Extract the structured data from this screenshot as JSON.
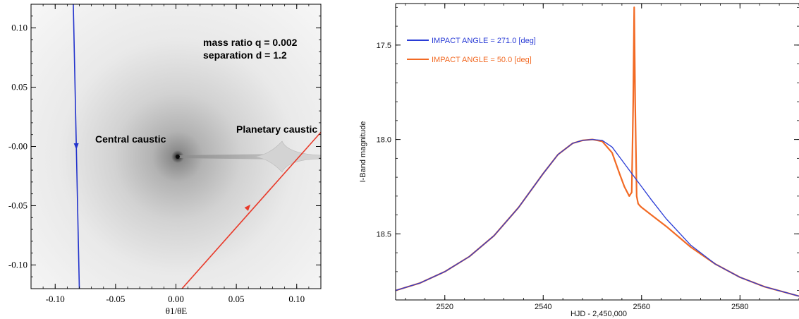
{
  "chart_data": [
    {
      "type": "map",
      "xlabel": "θ1/θE",
      "xlim": [
        -0.12,
        0.12
      ],
      "ylim": [
        -0.12,
        0.12
      ],
      "x_ticks": [
        "-0.10",
        "-0.05",
        "0.00",
        "0.05",
        "0.10"
      ],
      "x_tick_values": [
        -0.1,
        -0.05,
        0.0,
        0.05,
        0.1
      ],
      "y_ticks": [
        "0.10",
        "0.05",
        "-0.00",
        "-0.05",
        "-0.10"
      ],
      "y_tick_values": [
        0.1,
        0.05,
        0.0,
        -0.05,
        -0.1
      ],
      "annotations": [
        {
          "text": "mass ratio q = 0.002"
        },
        {
          "text": "separation d = 1.2"
        },
        {
          "text": "Central caustic"
        },
        {
          "text": "Planetary caustic"
        }
      ],
      "trajectories": [
        {
          "color": "#2233cc",
          "x": [
            -0.085,
            -0.08
          ],
          "y": [
            0.12,
            -0.12
          ],
          "arrow_at": [
            -0.0825,
            0.0
          ],
          "direction": "down"
        },
        {
          "color": "#e83a2a",
          "x": [
            0.005,
            0.12
          ],
          "y": [
            -0.12,
            0.012
          ],
          "arrow_at": [
            0.06,
            -0.051
          ],
          "direction": "up-right"
        }
      ],
      "caustics": [
        {
          "name": "central",
          "x": 0.0,
          "y": 0.0
        },
        {
          "name": "planetary",
          "x": 0.088,
          "y": 0.0
        }
      ]
    },
    {
      "type": "line",
      "xlabel": "HJD - 2,450,000",
      "ylabel": "I-Band  magnitude",
      "xlim": [
        2510,
        2592
      ],
      "ylim": [
        18.85,
        17.28
      ],
      "y_inverted": true,
      "x_ticks": [
        "2520",
        "2540",
        "2560",
        "2580"
      ],
      "x_tick_values": [
        2520,
        2540,
        2560,
        2580
      ],
      "y_ticks": [
        "17.5",
        "18.0",
        "18.5"
      ],
      "y_tick_values": [
        17.5,
        18.0,
        18.5
      ],
      "legend_position": "top-left",
      "series": [
        {
          "name": "IMPACT ANGLE = 271.0  [deg]",
          "color": "#2a3cd6",
          "x": [
            2510,
            2515,
            2520,
            2525,
            2530,
            2535,
            2540,
            2543,
            2546,
            2548,
            2550,
            2552,
            2554,
            2556,
            2558,
            2560,
            2562,
            2565,
            2570,
            2575,
            2580,
            2585,
            2592
          ],
          "y": [
            18.8,
            18.76,
            18.7,
            18.62,
            18.51,
            18.36,
            18.18,
            18.08,
            18.02,
            18.005,
            18.0,
            18.005,
            18.04,
            18.11,
            18.18,
            18.25,
            18.32,
            18.42,
            18.56,
            18.66,
            18.73,
            18.78,
            18.83
          ]
        },
        {
          "name": "IMPACT ANGLE = 50.0  [deg]",
          "color": "#f26a24",
          "x": [
            2510,
            2515,
            2520,
            2525,
            2530,
            2535,
            2540,
            2543,
            2546,
            2548,
            2550,
            2552,
            2554,
            2555.5,
            2556.5,
            2557.5,
            2558.0,
            2558.3,
            2558.5,
            2558.7,
            2559.0,
            2559.3,
            2559.6,
            2560,
            2561,
            2562,
            2565,
            2570,
            2575,
            2580,
            2585,
            2592
          ],
          "y": [
            18.8,
            18.76,
            18.7,
            18.62,
            18.51,
            18.36,
            18.18,
            18.08,
            18.02,
            18.005,
            18.0,
            18.01,
            18.07,
            18.18,
            18.25,
            18.3,
            18.28,
            17.8,
            17.3,
            17.8,
            18.3,
            18.34,
            18.35,
            18.36,
            18.38,
            18.4,
            18.46,
            18.57,
            18.66,
            18.73,
            18.78,
            18.83
          ]
        }
      ]
    }
  ]
}
